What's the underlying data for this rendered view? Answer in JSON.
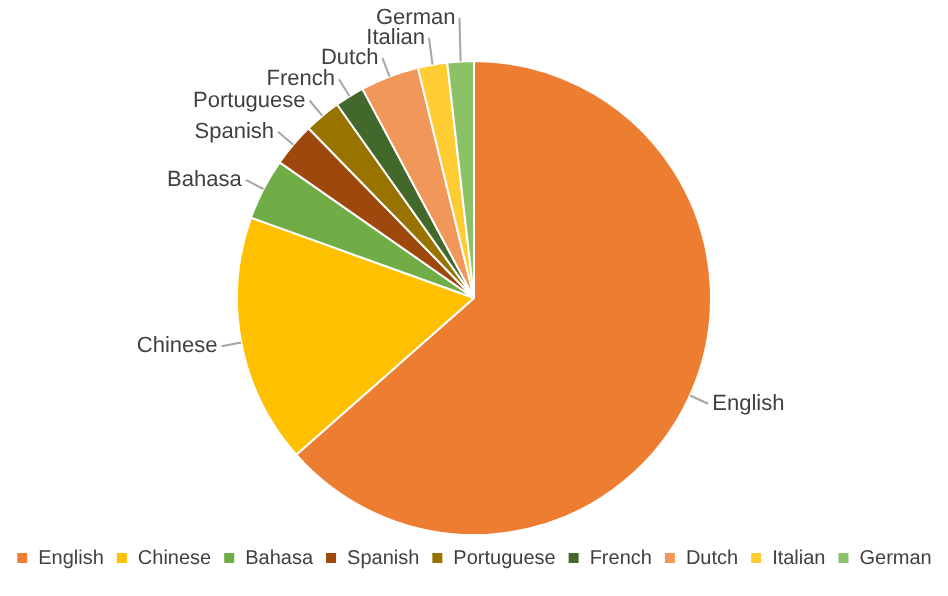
{
  "chart_data": {
    "type": "pie",
    "categories": [
      "English",
      "Chinese",
      "Bahasa",
      "Spanish",
      "Portuguese",
      "French",
      "Dutch",
      "Italian",
      "German"
    ],
    "values": [
      63.5,
      17,
      4.2,
      3,
      2.5,
      2,
      4,
      2,
      1.8
    ],
    "colors": [
      "#ed7d31",
      "#ffc000",
      "#70ad47",
      "#9e480e",
      "#997300",
      "#43682b",
      "#f1975a",
      "#ffcd33",
      "#8cc168"
    ],
    "legend": "bottom"
  }
}
